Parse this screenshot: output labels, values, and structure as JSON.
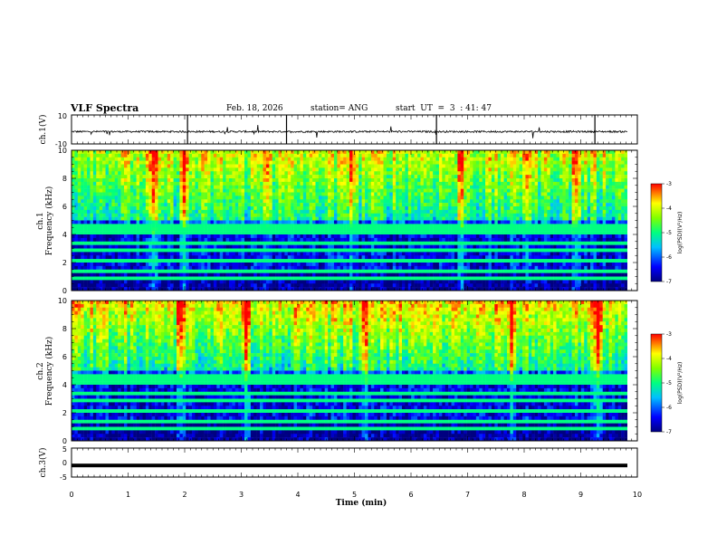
{
  "header": {
    "title": "VLF Spectra",
    "date": "Feb. 18, 2026",
    "station": "station= ANG",
    "start": "start  UT  =  3  : 41: 47"
  },
  "colors": {
    "spectrum_low": "#000080",
    "spectrum_mid": "#00ff00",
    "spectrum_high": "#ff0000",
    "trace": "#000000"
  },
  "chart_data": [
    {
      "type": "line",
      "panel": "ch1_waveform",
      "ylabel": "ch.1(V)",
      "ylim": [
        -10,
        10
      ],
      "y_ticklabels": [
        "10",
        "-10"
      ],
      "xlim": [
        0,
        10
      ],
      "baseline": -1.5
    },
    {
      "type": "heatmap",
      "panel": "ch1_spectrogram",
      "ylabel_line1": "ch.1",
      "ylabel_line2": "Frequency (kHz)",
      "ylim": [
        0,
        10
      ],
      "y_ticks": [
        0,
        2,
        4,
        6,
        8,
        10
      ],
      "xlim": [
        0,
        10
      ],
      "colorbar": {
        "label": "log(PSD)(V²/Hz)",
        "ticks": [
          -3,
          -4,
          -5,
          -6,
          -7
        ],
        "range": [
          -7,
          -3
        ]
      },
      "strong_bursts_min": [
        1.45,
        2.0,
        3.45,
        4.95,
        6.9,
        8.05,
        8.92
      ]
    },
    {
      "type": "heatmap",
      "panel": "ch2_spectrogram",
      "ylabel_line1": "ch.2",
      "ylabel_line2": "Frequency (kHz)",
      "ylim": [
        0,
        10
      ],
      "y_ticks": [
        0,
        2,
        4,
        6,
        8,
        10
      ],
      "xlim": [
        0,
        10
      ],
      "colorbar": {
        "label": "log(PSD)(V²/Hz)",
        "ticks": [
          -3,
          -4,
          -5,
          -6,
          -7
        ],
        "range": [
          -7,
          -3
        ]
      },
      "strong_bursts_min": [
        1.95,
        3.1,
        5.2,
        7.8,
        9.3
      ]
    },
    {
      "type": "line",
      "panel": "ch3_waveform",
      "ylabel": "ch.3(V)",
      "ylim": [
        -5,
        5
      ],
      "y_ticklabels": [
        "5",
        "0",
        "-5"
      ],
      "xlim": [
        0,
        10
      ],
      "baseline": -1
    }
  ],
  "x_axis": {
    "label": "Time (min)",
    "ticks": [
      "0",
      "1",
      "2",
      "3",
      "4",
      "5",
      "6",
      "7",
      "8",
      "9",
      "10"
    ]
  }
}
